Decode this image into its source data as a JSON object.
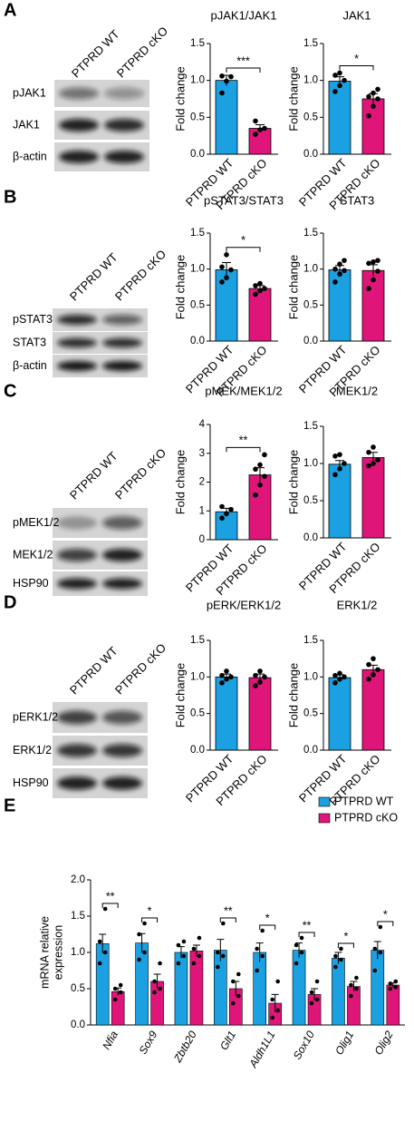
{
  "panels": [
    {
      "letter": "A",
      "lanes": [
        "PTPRD WT",
        "PTPRD cKO"
      ],
      "bands": [
        "pJAK1",
        "JAK1",
        "β-actin"
      ]
    },
    {
      "letter": "B",
      "lanes": [
        "PTPRD WT",
        "PTPRD cKO"
      ],
      "bands": [
        "pSTAT3",
        "STAT3",
        "β-actin"
      ]
    },
    {
      "letter": "C",
      "lanes": [
        "PTPRD WT",
        "PTPRD cKO"
      ],
      "bands": [
        "pMEK1/2",
        "MEK1/2",
        "HSP90"
      ]
    },
    {
      "letter": "D",
      "lanes": [
        "PTPRD WT",
        "PTPRD cKO"
      ],
      "bands": [
        "pERK1/2",
        "ERK1/2",
        "HSP90"
      ]
    },
    {
      "letter": "E"
    }
  ],
  "chart_data": [
    {
      "type": "bar",
      "title": "pJAK1/JAK1",
      "y_label": "Fold change",
      "categories": [
        "PTPRD WT",
        "PTPRD cKO"
      ],
      "colors": [
        "#1BA1E2",
        "#E0157A"
      ],
      "values": [
        1.0,
        0.35
      ],
      "errors": [
        0.07,
        0.05
      ],
      "points": [
        [
          0.83,
          0.99,
          1.05,
          1.06
        ],
        [
          0.27,
          0.33,
          0.35,
          0.45
        ]
      ],
      "significance": "***",
      "ylim": [
        0,
        1.5
      ],
      "yticks": [
        {
          "value": 0,
          "label": "0.0"
        },
        {
          "value": 0.5,
          "label": "0.5"
        },
        {
          "value": 1,
          "label": "1.0"
        },
        {
          "value": 1.5,
          "label": "1.5"
        }
      ]
    },
    {
      "type": "bar",
      "title": "JAK1",
      "y_label": "Fold change",
      "categories": [
        "PTPRD WT",
        "PTPRD cKO"
      ],
      "colors": [
        "#1BA1E2",
        "#E0157A"
      ],
      "values": [
        0.99,
        0.75
      ],
      "errors": [
        0.06,
        0.07
      ],
      "points": [
        [
          0.85,
          0.93,
          1.0,
          1.07,
          1.1
        ],
        [
          0.52,
          0.65,
          0.75,
          0.78,
          0.83,
          0.88
        ]
      ],
      "significance": "*",
      "ylim": [
        0,
        1.5
      ],
      "yticks": [
        {
          "value": 0,
          "label": "0.0"
        },
        {
          "value": 0.5,
          "label": "0.5"
        },
        {
          "value": 1,
          "label": "1.0"
        },
        {
          "value": 1.5,
          "label": "1.5"
        }
      ]
    },
    {
      "type": "bar",
      "title": "pSTAT3/STAT3",
      "y_label": "Fold change",
      "categories": [
        "PTPRD WT",
        "PTPRD cKO"
      ],
      "colors": [
        "#1BA1E2",
        "#E0157A"
      ],
      "values": [
        0.99,
        0.73
      ],
      "errors": [
        0.1,
        0.04
      ],
      "points": [
        [
          0.82,
          0.88,
          0.99,
          1.03,
          1.2
        ],
        [
          0.65,
          0.7,
          0.73,
          0.77,
          0.8
        ]
      ],
      "significance": "*",
      "ylim": [
        0,
        1.5
      ],
      "yticks": [
        {
          "value": 0,
          "label": "0.0"
        },
        {
          "value": 0.5,
          "label": "0.5"
        },
        {
          "value": 1,
          "label": "1.0"
        },
        {
          "value": 1.5,
          "label": "1.5"
        }
      ]
    },
    {
      "type": "bar",
      "title": "STAT3",
      "y_label": "Fold change",
      "categories": [
        "PTPRD WT",
        "PTPRD cKO"
      ],
      "colors": [
        "#1BA1E2",
        "#E0157A"
      ],
      "values": [
        0.99,
        0.98
      ],
      "errors": [
        0.06,
        0.08
      ],
      "points": [
        [
          0.82,
          0.93,
          0.98,
          1.0,
          1.07,
          1.12
        ],
        [
          0.73,
          0.85,
          0.97,
          1.08,
          1.1,
          1.12
        ]
      ],
      "significance": null,
      "ylim": [
        0,
        1.5
      ],
      "yticks": [
        {
          "value": 0,
          "label": "0.0"
        },
        {
          "value": 0.5,
          "label": "0.5"
        },
        {
          "value": 1,
          "label": "1.0"
        },
        {
          "value": 1.5,
          "label": "1.5"
        }
      ]
    },
    {
      "type": "bar",
      "title": "pMEK/MEK1/2",
      "y_label": "Fold change",
      "categories": [
        "PTPRD WT",
        "PTPRD cKO"
      ],
      "colors": [
        "#1BA1E2",
        "#E0157A"
      ],
      "values": [
        0.97,
        2.25
      ],
      "errors": [
        0.12,
        0.25
      ],
      "points": [
        [
          0.75,
          0.9,
          1.05,
          1.15
        ],
        [
          1.55,
          1.9,
          2.2,
          2.45,
          2.6,
          2.95
        ]
      ],
      "significance": "**",
      "ylim": [
        0,
        4
      ],
      "yticks": [
        0,
        1,
        2,
        3,
        4
      ]
    },
    {
      "type": "bar",
      "title": "MEK1/2",
      "y_label": "Fold change",
      "categories": [
        "PTPRD WT",
        "PTPRD cKO"
      ],
      "colors": [
        "#1BA1E2",
        "#E0157A"
      ],
      "values": [
        0.99,
        1.08
      ],
      "errors": [
        0.05,
        0.07
      ],
      "points": [
        [
          0.85,
          0.93,
          1.0,
          1.1,
          1.12
        ],
        [
          0.97,
          1.0,
          1.05,
          1.15,
          1.22
        ]
      ],
      "significance": null,
      "ylim": [
        0,
        1.5
      ],
      "yticks": [
        {
          "value": 0,
          "label": "0.0"
        },
        {
          "value": 0.5,
          "label": "0.5"
        },
        {
          "value": 1,
          "label": "1.0"
        },
        {
          "value": 1.5,
          "label": "1.5"
        }
      ]
    },
    {
      "type": "bar",
      "title": "pERK/ERK1/2",
      "y_label": "Fold change",
      "categories": [
        "PTPRD WT",
        "PTPRD cKO"
      ],
      "colors": [
        "#1BA1E2",
        "#E0157A"
      ],
      "values": [
        1.0,
        0.99
      ],
      "errors": [
        0.04,
        0.05
      ],
      "points": [
        [
          0.92,
          0.97,
          1.0,
          1.02,
          1.08
        ],
        [
          0.88,
          0.93,
          1.0,
          1.02,
          1.08
        ]
      ],
      "significance": null,
      "ylim": [
        0,
        1.5
      ],
      "yticks": [
        {
          "value": 0,
          "label": "0.0"
        },
        {
          "value": 0.5,
          "label": "0.5"
        },
        {
          "value": 1,
          "label": "1.0"
        },
        {
          "value": 1.5,
          "label": "1.5"
        }
      ]
    },
    {
      "type": "bar",
      "title": "ERK1/2",
      "y_label": "Fold change",
      "categories": [
        "PTPRD WT",
        "PTPRD cKO"
      ],
      "colors": [
        "#1BA1E2",
        "#E0157A"
      ],
      "values": [
        0.99,
        1.1
      ],
      "errors": [
        0.04,
        0.06
      ],
      "points": [
        [
          0.92,
          0.97,
          1.0,
          1.02,
          1.05
        ],
        [
          0.97,
          1.03,
          1.1,
          1.17,
          1.25
        ]
      ],
      "significance": null,
      "ylim": [
        0,
        1.5
      ],
      "yticks": [
        {
          "value": 0,
          "label": "0.0"
        },
        {
          "value": 0.5,
          "label": "0.5"
        },
        {
          "value": 1,
          "label": "1.0"
        },
        {
          "value": 1.5,
          "label": "1.5"
        }
      ]
    },
    {
      "type": "grouped_bar",
      "y_label": [
        "mRNA relative",
        "expression"
      ],
      "categories": [
        "Nfia",
        "Sox9",
        "Zbtb20",
        "Glt1",
        "Aldh1L1",
        "Sox10",
        "Olig1",
        "Olig2"
      ],
      "series": [
        {
          "name": "PTPRD WT",
          "color": "#1BA1E2",
          "values": [
            1.12,
            1.13,
            1.0,
            1.03,
            1.0,
            1.03,
            0.92,
            1.03
          ],
          "errors": [
            0.13,
            0.13,
            0.08,
            0.15,
            0.13,
            0.1,
            0.08,
            0.12
          ],
          "points": [
            [
              0.85,
              1.0,
              1.15,
              1.6
            ],
            [
              0.9,
              1.0,
              1.25,
              1.4
            ],
            [
              0.85,
              0.95,
              1.1,
              1.15
            ],
            [
              0.8,
              0.95,
              1.0,
              1.4
            ],
            [
              0.75,
              0.95,
              1.05,
              1.3
            ],
            [
              0.85,
              1.0,
              1.1,
              1.2
            ],
            [
              0.8,
              0.9,
              0.95,
              1.05
            ],
            [
              0.75,
              1.0,
              1.05,
              1.35
            ]
          ]
        },
        {
          "name": "PTPRD cKO",
          "color": "#E0157A",
          "values": [
            0.46,
            0.6,
            1.02,
            0.5,
            0.3,
            0.42,
            0.53,
            0.55
          ],
          "errors": [
            0.05,
            0.1,
            0.08,
            0.1,
            0.12,
            0.08,
            0.07,
            0.03
          ],
          "points": [
            [
              0.35,
              0.45,
              0.5,
              0.55
            ],
            [
              0.45,
              0.5,
              0.6,
              0.85
            ],
            [
              0.85,
              0.95,
              1.05,
              1.2
            ],
            [
              0.3,
              0.4,
              0.6,
              0.7
            ],
            [
              0.1,
              0.2,
              0.35,
              0.6
            ],
            [
              0.3,
              0.35,
              0.45,
              0.6
            ],
            [
              0.4,
              0.5,
              0.55,
              0.65
            ],
            [
              0.5,
              0.52,
              0.57,
              0.6
            ]
          ]
        }
      ],
      "significance": [
        "**",
        "*",
        null,
        "**",
        "*",
        "**",
        "*",
        "*"
      ],
      "ylim": [
        0,
        2
      ],
      "yticks": [
        {
          "value": 0,
          "label": "0.0"
        },
        {
          "value": 0.5,
          "label": "0.5"
        },
        {
          "value": 1,
          "label": "1.0"
        },
        {
          "value": 1.5,
          "label": "1.5"
        },
        {
          "value": 2,
          "label": "2.0"
        }
      ]
    }
  ]
}
